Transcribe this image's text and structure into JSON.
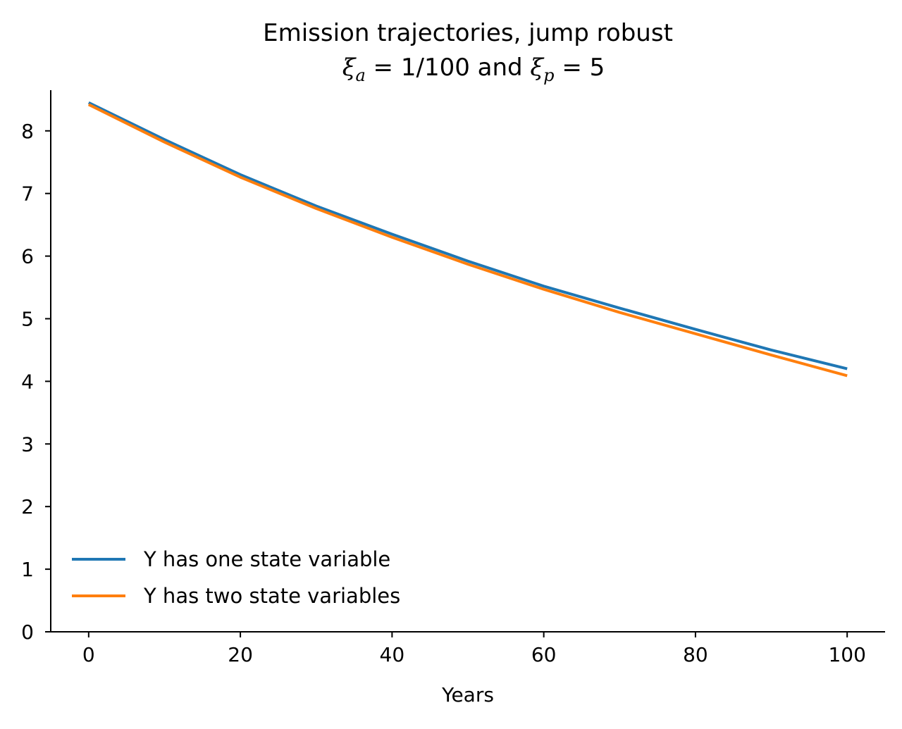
{
  "chart_data": {
    "type": "line",
    "title": "Emission trajectories, jump robust",
    "subtitle_parts": {
      "xi_a_symbol": "ξ",
      "xi_a_sub": "a",
      "xi_a_value": " = 1/100 and ",
      "xi_p_symbol": "ξ",
      "xi_p_sub": "p",
      "xi_p_value": " = 5"
    },
    "xlabel": "Years",
    "ylabel": "",
    "xlim": [
      -5,
      105
    ],
    "ylim": [
      0,
      8.65
    ],
    "xticks": [
      0,
      20,
      40,
      60,
      80,
      100
    ],
    "yticks": [
      0,
      1,
      2,
      3,
      4,
      5,
      6,
      7,
      8
    ],
    "grid": false,
    "legend_position": "lower-left",
    "x": [
      0,
      10,
      20,
      30,
      40,
      50,
      60,
      70,
      80,
      90,
      100
    ],
    "series": [
      {
        "name": "Y has one state variable",
        "color": "#1f77b4",
        "values": [
          8.45,
          7.86,
          7.3,
          6.8,
          6.35,
          5.92,
          5.52,
          5.17,
          4.83,
          4.5,
          4.2
        ]
      },
      {
        "name": "Y has two state variables",
        "color": "#ff7f0e",
        "values": [
          8.42,
          7.82,
          7.26,
          6.76,
          6.3,
          5.87,
          5.47,
          5.1,
          4.76,
          4.42,
          4.09
        ]
      }
    ]
  }
}
